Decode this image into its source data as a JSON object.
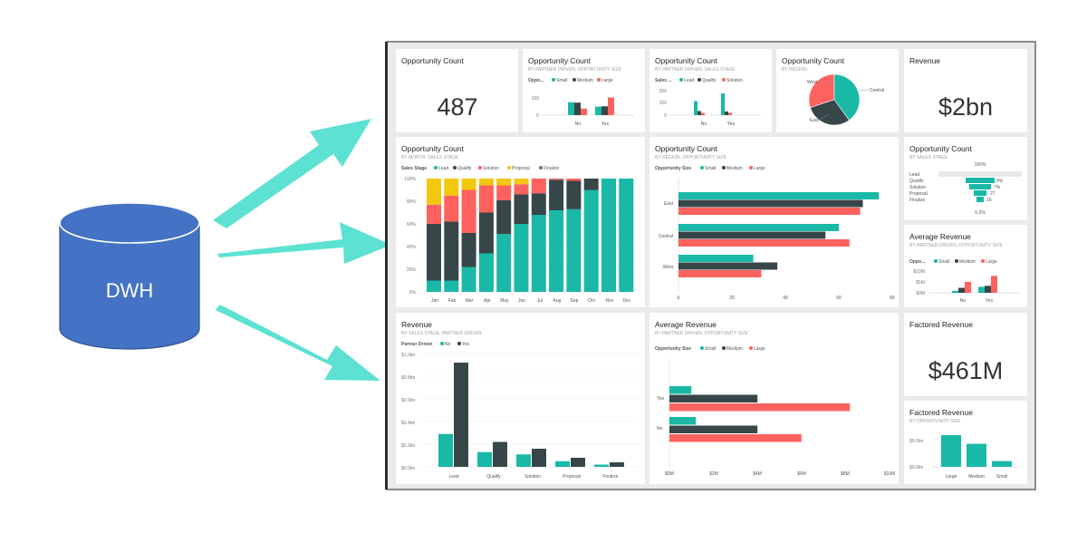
{
  "colors": {
    "teal": "#1ab8a6",
    "dark": "#374649",
    "red": "#fd625e",
    "yellow": "#f2c80f",
    "gray": "#6f7476",
    "dwh": "#4472c4",
    "arrow": "#5ce1d3",
    "frame": "#6b6b6b",
    "tileBg": "#ffffff",
    "dashBg": "#eaeaea"
  },
  "dwh": {
    "label": "DWH"
  },
  "tiles": {
    "t1": {
      "title": "Opportunity Count",
      "kpi": "487"
    },
    "t2": {
      "title": "Opportunity Count",
      "subtitle": "BY PARTNER DRIVEN, OPPORTUNITY SIZE",
      "legend_title": "Oppo...",
      "legend": [
        "Small",
        "Medium",
        "Large"
      ],
      "y_ticks": [
        "100",
        "0"
      ],
      "categories": [
        "No",
        "Yes"
      ],
      "series": [
        [
          95,
          62
        ],
        [
          92,
          65
        ],
        [
          48,
          130
        ]
      ]
    },
    "t3": {
      "title": "Opportunity Count",
      "subtitle": "BY PARTNER DRIVEN, SALES STAGE",
      "legend_title": "Sales ...",
      "legend": [
        "Lead",
        "Qualify",
        "Solution"
      ],
      "y_ticks": [
        "200",
        "100",
        "0"
      ],
      "categories": [
        "No",
        "Yes"
      ],
      "series": [
        [
          155,
          240
        ],
        [
          45,
          40
        ],
        [
          25,
          25
        ],
        [
          10,
          10
        ],
        [
          5,
          5
        ]
      ]
    },
    "t4": {
      "title": "Opportunity Count",
      "subtitle": "BY REGION",
      "labels": [
        "West",
        "Central",
        "East"
      ],
      "slices": [
        30,
        40,
        30
      ]
    },
    "t5": {
      "title": "Revenue",
      "kpi": "$2bn"
    },
    "t6": {
      "title": "Opportunity Count",
      "subtitle": "BY MONTH, SALES STAGE",
      "legend_title": "Sales Stage",
      "legend": [
        "Lead",
        "Qualify",
        "Solution",
        "Proposal",
        "Finalize"
      ],
      "y_ticks": [
        "100%",
        "80%",
        "60%",
        "40%",
        "20%",
        "0%"
      ],
      "months": [
        "Jan",
        "Feb",
        "Mar",
        "Apr",
        "May",
        "Jun",
        "Jul",
        "Aug",
        "Sep",
        "Oct",
        "Nov",
        "Dec"
      ]
    },
    "t7": {
      "title": "Opportunity Count",
      "subtitle": "BY REGION, OPPORTUNITY SIZE",
      "legend_title": "Opportunity Size",
      "legend": [
        "Small",
        "Medium",
        "Large"
      ],
      "categories": [
        "East",
        "Central",
        "West"
      ],
      "x_ticks": [
        "0",
        "20",
        "40",
        "60",
        "80"
      ]
    },
    "t8": {
      "title": "Opportunity Count",
      "subtitle": "BY SALES STAGE",
      "top_label": "100%",
      "stages": [
        "Lead",
        "Qualify",
        "Solution",
        "Proposal",
        "Finalize"
      ],
      "values": [
        "",
        "9%",
        "7%",
        "27",
        "16"
      ],
      "bottom_label": "5.2%"
    },
    "t9": {
      "title": "Average Revenue",
      "subtitle": "BY PARTNER DRIVEN, OPPORTUNITY SIZE",
      "legend_title": "Oppo...",
      "legend": [
        "Small",
        "Medium",
        "Large"
      ],
      "y_ticks": [
        "$10M",
        "$5M",
        "$0M"
      ],
      "categories": [
        "No",
        "Yes"
      ]
    },
    "t10": {
      "title": "Revenue",
      "subtitle": "BY SALES STAGE, PARTNER DRIVEN",
      "legend_title": "Partner Driven",
      "legend": [
        "No",
        "Yes"
      ],
      "y_ticks": [
        "$1.0bn",
        "$0.8bn",
        "$0.6bn",
        "$0.4bn",
        "$0.2bn",
        "$0.0bn"
      ],
      "categories": [
        "Lead",
        "Qualify",
        "Solution",
        "Proposal",
        "Finalize"
      ]
    },
    "t11": {
      "title": "Average Revenue",
      "subtitle": "BY PARTNER DRIVEN, OPPORTUNITY SIZE",
      "legend_title": "Opportunity Size",
      "legend": [
        "Small",
        "Medium",
        "Large"
      ],
      "categories": [
        "Yes",
        "No"
      ],
      "x_ticks": [
        "$0M",
        "$2M",
        "$4M",
        "$6M",
        "$8M",
        "$10M"
      ]
    },
    "t12": {
      "title": "Factored Revenue",
      "kpi": "$461M"
    },
    "t13": {
      "title": "Factored Revenue",
      "subtitle": "BY OPPORTUNITY SIZE",
      "y_ticks": [
        "$0.0bn",
        "$0.0bn"
      ],
      "categories": [
        "Large",
        "Medium",
        "Small"
      ]
    }
  },
  "chart_data": [
    {
      "type": "bar",
      "title": "Opportunity Count",
      "categories": [
        "No",
        "Yes"
      ],
      "series": [
        {
          "name": "Small",
          "values": [
            95,
            62
          ]
        },
        {
          "name": "Medium",
          "values": [
            92,
            65
          ]
        },
        {
          "name": "Large",
          "values": [
            48,
            130
          ]
        }
      ]
    },
    {
      "type": "bar",
      "title": "Opportunity Count",
      "categories": [
        "No",
        "Yes"
      ],
      "series": [
        {
          "name": "Lead",
          "values": [
            155,
            240
          ]
        },
        {
          "name": "Qualify",
          "values": [
            45,
            40
          ]
        },
        {
          "name": "Solution",
          "values": [
            25,
            25
          ]
        }
      ]
    },
    {
      "type": "pie",
      "title": "Opportunity Count",
      "categories": [
        "West",
        "Central",
        "East"
      ],
      "values": [
        30,
        40,
        30
      ]
    },
    {
      "type": "bar",
      "title": "Opportunity Count",
      "categories": [
        "Jan",
        "Feb",
        "Mar",
        "Apr",
        "May",
        "Jun",
        "Jul",
        "Aug",
        "Sep",
        "Oct",
        "Nov",
        "Dec"
      ],
      "ylim": [
        0,
        100
      ],
      "series": [
        {
          "name": "Lead",
          "values": [
            10,
            10,
            22,
            34,
            51,
            60,
            68,
            72,
            73,
            90,
            100,
            100
          ]
        },
        {
          "name": "Qualify",
          "values": [
            50,
            52,
            30,
            36,
            30,
            26,
            19,
            27,
            25,
            10,
            0,
            0
          ]
        },
        {
          "name": "Solution",
          "values": [
            17,
            23,
            38,
            24,
            13,
            9,
            13,
            1,
            2,
            0,
            0,
            0
          ]
        },
        {
          "name": "Proposal",
          "values": [
            23,
            15,
            10,
            6,
            6,
            5,
            0,
            0,
            0,
            0,
            0,
            0
          ]
        },
        {
          "name": "Finalize",
          "values": [
            0,
            0,
            0,
            0,
            0,
            0,
            0,
            0,
            0,
            0,
            0,
            0
          ]
        }
      ]
    },
    {
      "type": "bar",
      "title": "Opportunity Count",
      "categories": [
        "East",
        "Central",
        "West"
      ],
      "xlim": [
        0,
        80
      ],
      "series": [
        {
          "name": "Small",
          "values": [
            75,
            60,
            28
          ]
        },
        {
          "name": "Medium",
          "values": [
            69,
            55,
            37
          ]
        },
        {
          "name": "Large",
          "values": [
            68,
            64,
            31
          ]
        }
      ]
    },
    {
      "type": "bar",
      "title": "Average Revenue",
      "categories": [
        "No",
        "Yes"
      ],
      "series": [
        {
          "name": "Small",
          "values": [
            1,
            3
          ]
        },
        {
          "name": "Medium",
          "values": [
            2.5,
            3.5
          ]
        },
        {
          "name": "Large",
          "values": [
            5.5,
            8.5
          ]
        }
      ]
    },
    {
      "type": "bar",
      "title": "Revenue",
      "categories": [
        "Lead",
        "Qualify",
        "Solution",
        "Proposal",
        "Finalize"
      ],
      "ylim": [
        0,
        1.0
      ],
      "series": [
        {
          "name": "No",
          "values": [
            0.29,
            0.13,
            0.11,
            0.05,
            0.02
          ]
        },
        {
          "name": "Yes",
          "values": [
            0.92,
            0.22,
            0.16,
            0.08,
            0.04
          ]
        }
      ]
    },
    {
      "type": "bar",
      "title": "Average Revenue",
      "categories": [
        "Yes",
        "No"
      ],
      "xlim": [
        0,
        10
      ],
      "series": [
        {
          "name": "Small",
          "values": [
            1.0,
            1.2
          ]
        },
        {
          "name": "Medium",
          "values": [
            4.0,
            4.0
          ]
        },
        {
          "name": "Large",
          "values": [
            8.2,
            6.0
          ]
        }
      ]
    },
    {
      "type": "bar",
      "title": "Factored Revenue",
      "categories": [
        "Large",
        "Medium",
        "Small"
      ],
      "series": [
        {
          "name": "Factored Revenue",
          "values": [
            0.11,
            0.08,
            0.02
          ]
        }
      ]
    }
  ]
}
